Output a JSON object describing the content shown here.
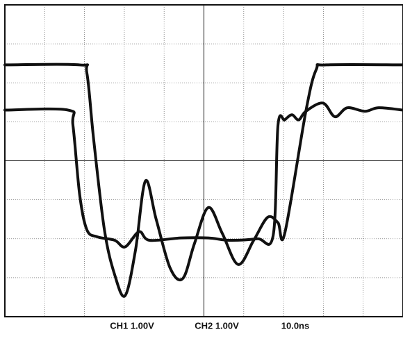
{
  "chart_data": {
    "type": "line",
    "labels": [
      "CH1 1.00V",
      "CH2 1.00V",
      "10.0ns"
    ],
    "xlim": [
      0,
      10
    ],
    "ylim": [
      -4,
      4
    ],
    "xticks": [
      0,
      1,
      2,
      3,
      4,
      5,
      6,
      7,
      8,
      9,
      10
    ],
    "yticks": [
      -4,
      -3,
      -2,
      -1,
      0,
      1,
      2,
      3,
      4
    ],
    "grid": true,
    "series": [
      {
        "color": "#111111",
        "x": [
          0,
          1.88,
          2.06,
          2.23,
          2.5,
          2.76,
          3.02,
          3.28,
          3.53,
          3.8,
          4.15,
          4.47,
          4.76,
          5.11,
          5.46,
          5.86,
          6.25,
          6.6,
          6.86,
          7.03,
          7.56,
          7.82,
          8.08,
          10
        ],
        "values": [
          2.46,
          2.46,
          2.25,
          0.55,
          -1.77,
          -2.93,
          -3.46,
          -2.3,
          -0.52,
          -1.5,
          -2.75,
          -3.02,
          -2.13,
          -1.2,
          -1.86,
          -2.66,
          -2.04,
          -1.45,
          -1.59,
          -1.86,
          1.27,
          2.34,
          2.46,
          2.46
        ]
      },
      {
        "color": "#111111",
        "x": [
          0,
          1.59,
          1.71,
          1.88,
          2.06,
          2.32,
          2.76,
          3.02,
          3.37,
          3.63,
          4.42,
          5.11,
          5.64,
          6.34,
          6.74,
          6.86,
          7.03,
          7.21,
          7.38,
          7.56,
          7.99,
          8.29,
          8.6,
          9.04,
          9.39,
          10
        ],
        "values": [
          1.3,
          1.3,
          0.91,
          -0.88,
          -1.77,
          -1.95,
          -2.04,
          -2.21,
          -1.82,
          -2.04,
          -1.98,
          -1.98,
          -2.04,
          -2.0,
          -1.91,
          0.91,
          1.05,
          1.18,
          1.05,
          1.27,
          1.48,
          1.13,
          1.36,
          1.27,
          1.36,
          1.3
        ]
      }
    ]
  }
}
